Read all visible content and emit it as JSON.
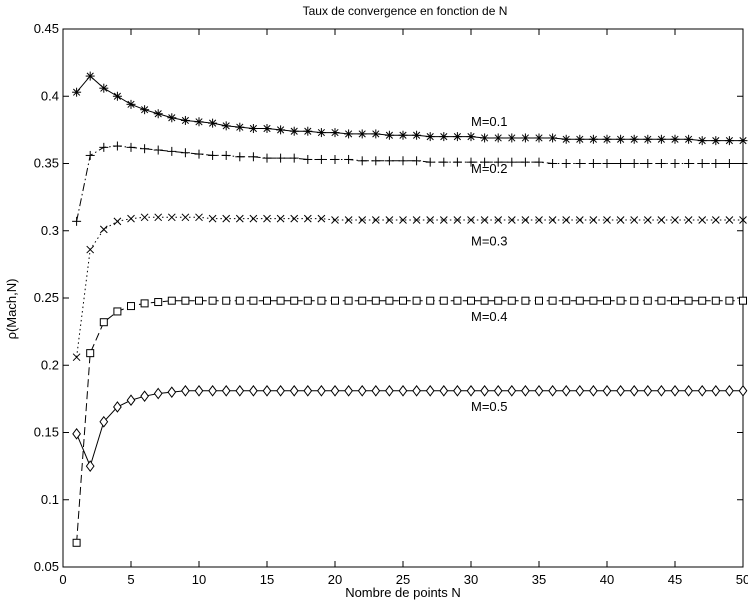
{
  "chart_data": {
    "type": "line",
    "title": "Taux de convergence en fonction de N",
    "xlabel": "Nombre de points N",
    "ylabel": "ρ(Mach,N)",
    "xlim": [
      0,
      50
    ],
    "ylim": [
      0.05,
      0.45
    ],
    "xticks": [
      0,
      5,
      10,
      15,
      20,
      25,
      30,
      35,
      40,
      45,
      50
    ],
    "yticks": [
      0.05,
      0.1,
      0.15,
      0.2,
      0.25,
      0.3,
      0.35,
      0.4,
      0.45
    ],
    "grid": false,
    "colors": {
      "line": "#000000",
      "background": "#ffffff"
    },
    "x": [
      1,
      2,
      3,
      4,
      5,
      6,
      7,
      8,
      9,
      10,
      11,
      12,
      13,
      14,
      15,
      16,
      17,
      18,
      19,
      20,
      21,
      22,
      23,
      24,
      25,
      26,
      27,
      28,
      29,
      30,
      31,
      32,
      33,
      34,
      35,
      36,
      37,
      38,
      39,
      40,
      41,
      42,
      43,
      44,
      45,
      46,
      47,
      48,
      49,
      50
    ],
    "series": [
      {
        "marker": "asterisk",
        "line_style": "solid",
        "values": [
          0.403,
          0.415,
          0.406,
          0.4,
          0.394,
          0.39,
          0.387,
          0.384,
          0.382,
          0.381,
          0.38,
          0.378,
          0.377,
          0.376,
          0.376,
          0.375,
          0.374,
          0.374,
          0.373,
          0.373,
          0.372,
          0.372,
          0.372,
          0.371,
          0.371,
          0.371,
          0.37,
          0.37,
          0.37,
          0.37,
          0.369,
          0.369,
          0.369,
          0.369,
          0.369,
          0.369,
          0.368,
          0.368,
          0.368,
          0.368,
          0.368,
          0.368,
          0.368,
          0.368,
          0.368,
          0.368,
          0.367,
          0.367,
          0.367,
          0.367
        ]
      },
      {
        "marker": "plus",
        "line_style": "dashdot",
        "values": [
          0.307,
          0.356,
          0.362,
          0.363,
          0.362,
          0.361,
          0.36,
          0.359,
          0.358,
          0.357,
          0.356,
          0.356,
          0.355,
          0.355,
          0.354,
          0.354,
          0.354,
          0.353,
          0.353,
          0.353,
          0.353,
          0.352,
          0.352,
          0.352,
          0.352,
          0.352,
          0.351,
          0.351,
          0.351,
          0.351,
          0.351,
          0.351,
          0.351,
          0.351,
          0.351,
          0.35,
          0.35,
          0.35,
          0.35,
          0.35,
          0.35,
          0.35,
          0.35,
          0.35,
          0.35,
          0.35,
          0.35,
          0.35,
          0.35,
          0.35
        ]
      },
      {
        "marker": "x",
        "line_style": "dotted",
        "values": [
          0.206,
          0.286,
          0.301,
          0.307,
          0.309,
          0.31,
          0.31,
          0.31,
          0.31,
          0.31,
          0.309,
          0.309,
          0.309,
          0.309,
          0.309,
          0.309,
          0.309,
          0.309,
          0.309,
          0.308,
          0.308,
          0.308,
          0.308,
          0.308,
          0.308,
          0.308,
          0.308,
          0.308,
          0.308,
          0.308,
          0.308,
          0.308,
          0.308,
          0.308,
          0.308,
          0.308,
          0.308,
          0.308,
          0.308,
          0.308,
          0.308,
          0.308,
          0.308,
          0.308,
          0.308,
          0.308,
          0.308,
          0.308,
          0.308,
          0.308
        ]
      },
      {
        "marker": "square",
        "line_style": "dashed",
        "values": [
          0.068,
          0.209,
          0.232,
          0.24,
          0.244,
          0.246,
          0.247,
          0.248,
          0.248,
          0.248,
          0.248,
          0.248,
          0.248,
          0.248,
          0.248,
          0.248,
          0.248,
          0.248,
          0.248,
          0.248,
          0.248,
          0.248,
          0.248,
          0.248,
          0.248,
          0.248,
          0.248,
          0.248,
          0.248,
          0.248,
          0.248,
          0.248,
          0.248,
          0.248,
          0.248,
          0.248,
          0.248,
          0.248,
          0.248,
          0.248,
          0.248,
          0.248,
          0.248,
          0.248,
          0.248,
          0.248,
          0.248,
          0.248,
          0.248,
          0.248
        ]
      },
      {
        "marker": "diamond",
        "line_style": "solid",
        "values": [
          0.149,
          0.125,
          0.158,
          0.169,
          0.174,
          0.177,
          0.179,
          0.18,
          0.181,
          0.181,
          0.181,
          0.181,
          0.181,
          0.181,
          0.181,
          0.181,
          0.181,
          0.181,
          0.181,
          0.181,
          0.181,
          0.181,
          0.181,
          0.181,
          0.181,
          0.181,
          0.181,
          0.181,
          0.181,
          0.181,
          0.181,
          0.181,
          0.181,
          0.181,
          0.181,
          0.181,
          0.181,
          0.181,
          0.181,
          0.181,
          0.181,
          0.181,
          0.181,
          0.181,
          0.181,
          0.181,
          0.181,
          0.181,
          0.181,
          0.181
        ]
      }
    ],
    "annotations": [
      {
        "text": "M=0.1",
        "x": 30,
        "y": 0.378
      },
      {
        "text": "M=0.2",
        "x": 30,
        "y": 0.343
      },
      {
        "text": "M=0.3",
        "x": 30,
        "y": 0.289
      },
      {
        "text": "M=0.4",
        "x": 30,
        "y": 0.233
      },
      {
        "text": "M=0.5",
        "x": 30,
        "y": 0.166
      }
    ]
  }
}
